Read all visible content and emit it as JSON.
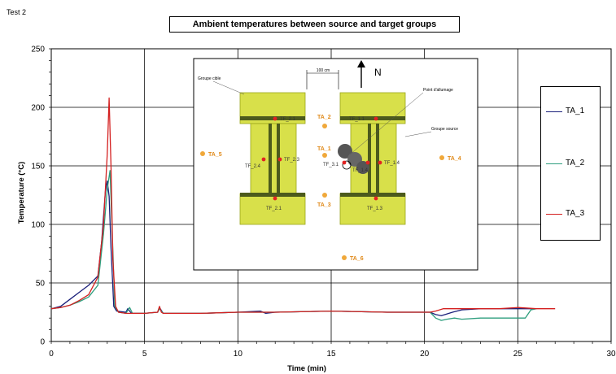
{
  "page_label": "Test 2",
  "chart_data": {
    "type": "line",
    "title": "Ambient temperatures between source and target groups",
    "xlabel": "Time (min)",
    "ylabel": "Temperature (°C)",
    "xlim": [
      0,
      30
    ],
    "ylim": [
      0,
      250
    ],
    "xticks": [
      0,
      5,
      10,
      15,
      20,
      25,
      30
    ],
    "yticks": [
      0,
      50,
      100,
      150,
      200,
      250
    ],
    "grid": true,
    "legend_position": "right",
    "series": [
      {
        "name": "TA_1",
        "color": "#1a1f7a",
        "x": [
          0,
          0.5,
          1.0,
          1.5,
          2.0,
          2.5,
          2.7,
          2.9,
          3.0,
          3.1,
          3.2,
          3.35,
          3.5,
          4.0,
          4.1,
          4.3,
          5.0,
          5.7,
          5.8,
          6.0,
          8,
          10,
          11.2,
          11.5,
          12,
          15,
          18,
          20.3,
          20.6,
          20.9,
          21.1,
          21.5,
          22.0,
          23,
          24,
          25,
          25.3,
          25.9,
          26.0
        ],
        "y": [
          28,
          30,
          36,
          42,
          48,
          56,
          85,
          128,
          137,
          124,
          80,
          30,
          26,
          25,
          28,
          24,
          24,
          25,
          29,
          24,
          24,
          25,
          26,
          24,
          25,
          26,
          25,
          25,
          23,
          22,
          23,
          25,
          27,
          28,
          28,
          28,
          28,
          28,
          28
        ]
      },
      {
        "name": "TA_2",
        "color": "#2e9e7e",
        "x": [
          0,
          0.5,
          1.0,
          1.5,
          2.0,
          2.5,
          2.8,
          3.0,
          3.15,
          3.3,
          3.4,
          3.6,
          4.0,
          4.2,
          4.35,
          5.0,
          5.7,
          5.8,
          6.0,
          8,
          10,
          12,
          15,
          18,
          20.3,
          20.6,
          20.9,
          21.2,
          21.6,
          22,
          23,
          24,
          25,
          25.4,
          25.7,
          26.0
        ],
        "y": [
          28,
          29,
          31,
          34,
          38,
          48,
          92,
          130,
          146,
          78,
          30,
          25,
          24,
          29,
          24,
          24,
          25,
          28,
          24,
          24,
          25,
          25,
          26,
          25,
          25,
          20,
          18,
          19,
          20,
          19,
          20,
          20,
          20,
          20,
          27,
          28
        ]
      },
      {
        "name": "TA_3",
        "color": "#d42020",
        "x": [
          0,
          0.5,
          1.0,
          1.5,
          2.0,
          2.5,
          2.8,
          3.0,
          3.1,
          3.2,
          3.3,
          3.45,
          3.6,
          4.0,
          5.0,
          5.7,
          5.8,
          5.9,
          6.0,
          8,
          10,
          12,
          15,
          18,
          20.3,
          20.6,
          21.0,
          21.3,
          21.6,
          22,
          23,
          24,
          25,
          26,
          27
        ],
        "y": [
          28,
          29,
          31,
          35,
          40,
          55,
          100,
          160,
          208,
          150,
          70,
          30,
          25,
          24,
          24,
          25,
          30,
          25,
          24,
          24,
          25,
          25,
          26,
          25,
          25,
          26,
          28,
          28,
          28,
          28,
          28,
          28,
          29,
          28,
          28
        ]
      }
    ],
    "inset": {
      "labels": {
        "width_label": "100 cm",
        "north": "N",
        "target_group": "Groupe cible",
        "ignition_point": "Point d'allumage",
        "source_group": "Groupe source"
      },
      "ta_points": [
        "TA_2",
        "TA_5",
        "TA_1",
        "TA_3",
        "TA_4",
        "TA_6"
      ],
      "tf_points": [
        "TF_2.1",
        "TF_1.1",
        "TF_2.4",
        "TF_2.3",
        "TF_3.1",
        "TF_1.4",
        "TF_1.4",
        "TF_2.1",
        "TF_1.3"
      ]
    }
  }
}
